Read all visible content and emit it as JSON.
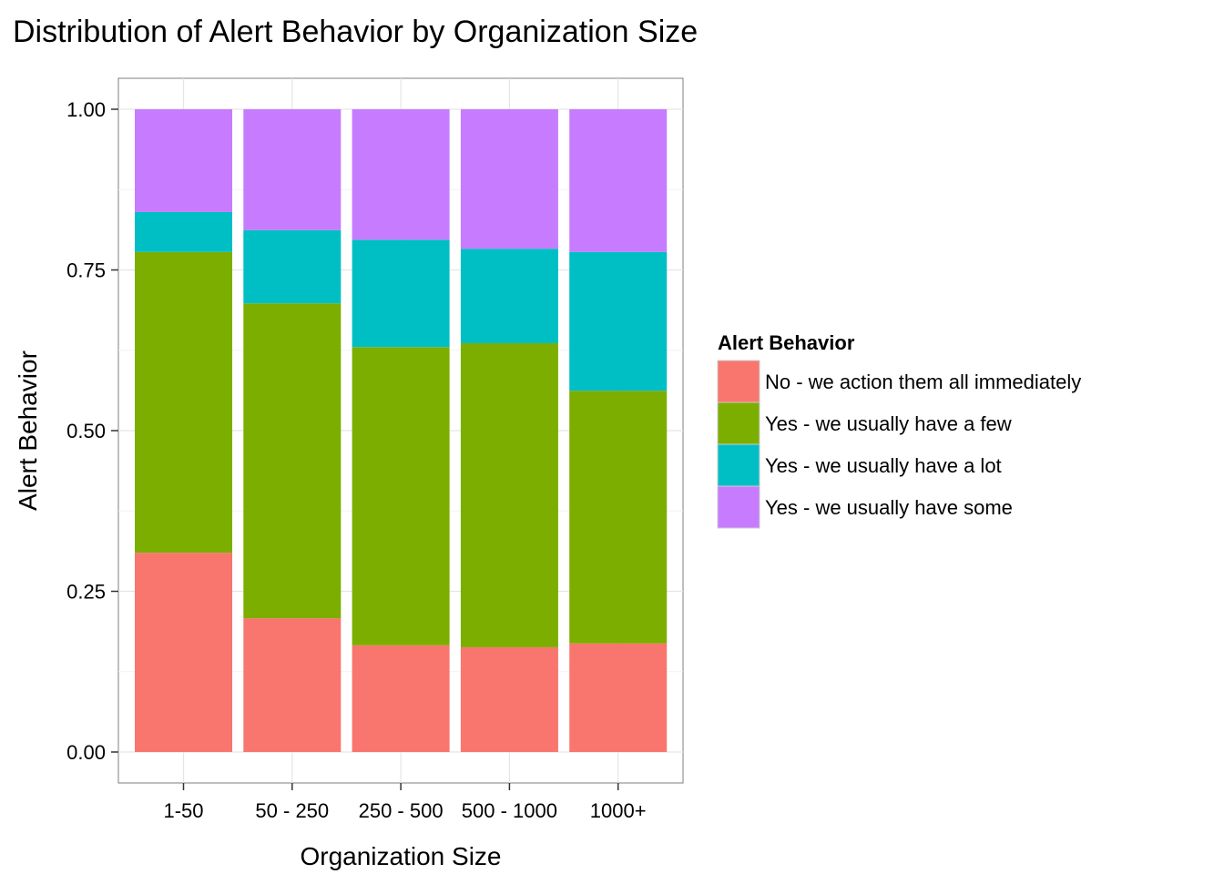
{
  "chart_data": {
    "type": "bar",
    "stacked": true,
    "normalized": true,
    "title": "Distribution of Alert Behavior by Organization Size",
    "xlabel": "Organization Size",
    "ylabel": "Alert Behavior",
    "ylim": [
      0,
      1
    ],
    "yticks": [
      "0.00",
      "0.25",
      "0.50",
      "0.75",
      "1.00"
    ],
    "grid": true,
    "legend_position": "right",
    "legend_title": "Alert Behavior",
    "categories": [
      "1-50",
      "50 - 250",
      "250 - 500",
      "500 - 1000",
      "1000+"
    ],
    "series": [
      {
        "name": "No - we action them all immediately",
        "color": "#F8766D",
        "values": [
          0.31,
          0.208,
          0.166,
          0.163,
          0.169
        ]
      },
      {
        "name": "Yes - we usually have a few",
        "color": "#7CAE00",
        "values": [
          0.468,
          0.49,
          0.464,
          0.473,
          0.393
        ]
      },
      {
        "name": "Yes - we usually have a lot",
        "color": "#00BFC4",
        "values": [
          0.062,
          0.114,
          0.167,
          0.147,
          0.216
        ]
      },
      {
        "name": "Yes - we usually have some",
        "color": "#C77CFF",
        "values": [
          0.16,
          0.188,
          0.203,
          0.217,
          0.222
        ]
      }
    ]
  }
}
